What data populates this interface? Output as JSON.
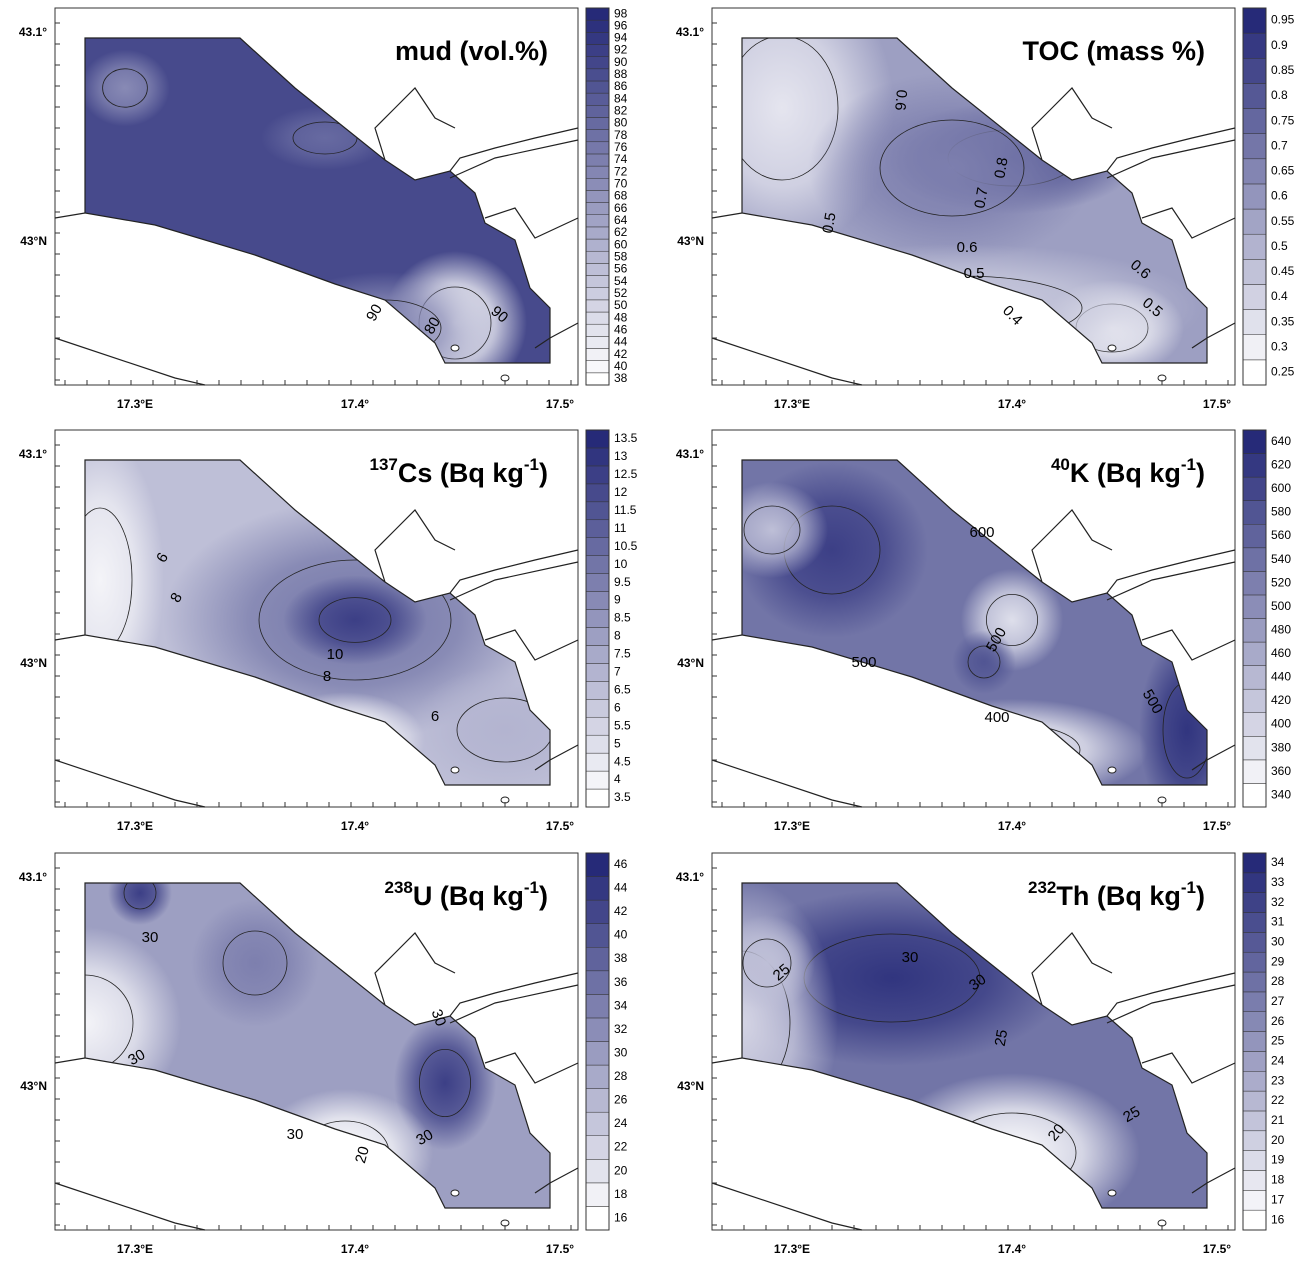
{
  "x_axis_labels": [
    "17.3°E",
    "17.4°",
    "17.5°"
  ],
  "y_axis_labels": [
    "43.1°",
    "43°N"
  ],
  "panels": [
    {
      "title": "mud (vol.%)",
      "colorbar_ticks": [
        38,
        40,
        42,
        44,
        46,
        48,
        50,
        52,
        54,
        56,
        58,
        60,
        62,
        64,
        66,
        68,
        70,
        72,
        74,
        76,
        78,
        80,
        82,
        84,
        86,
        88,
        90,
        92,
        94,
        96,
        98
      ],
      "contour_labels": [
        90,
        80,
        90
      ]
    },
    {
      "title": "TOC (mass %)",
      "colorbar_ticks": [
        0.25,
        0.3,
        0.35,
        0.4,
        0.45,
        0.5,
        0.55,
        0.6,
        0.65,
        0.7,
        0.75,
        0.8,
        0.85,
        0.9,
        0.95
      ],
      "contour_labels": [
        0.6,
        0.8,
        0.7,
        0.5,
        0.6,
        0.5,
        0.6,
        0.4,
        0.5
      ]
    },
    {
      "title": {
        "mass": "137",
        "element": "Cs (Bq kg",
        "exponent": "-1",
        "close": ")"
      },
      "colorbar_ticks": [
        3.5,
        4,
        4.5,
        5,
        5.5,
        6,
        6.5,
        7,
        7.5,
        8,
        8.5,
        9,
        9.5,
        10,
        10.5,
        11,
        11.5,
        12,
        12.5,
        13,
        13.5
      ],
      "contour_labels": [
        6,
        8,
        10,
        8,
        6
      ]
    },
    {
      "title": {
        "mass": "40",
        "element": "K (Bq kg",
        "exponent": "-1",
        "close": ")"
      },
      "colorbar_ticks": [
        340,
        360,
        380,
        400,
        420,
        440,
        460,
        480,
        500,
        520,
        540,
        560,
        580,
        600,
        620,
        640
      ],
      "contour_labels": [
        600,
        500,
        500,
        400,
        500
      ]
    },
    {
      "title": {
        "mass": "238",
        "element": "U (Bq kg",
        "exponent": "-1",
        "close": ")"
      },
      "colorbar_ticks": [
        16,
        18,
        20,
        22,
        24,
        26,
        28,
        30,
        32,
        34,
        36,
        38,
        40,
        42,
        44,
        46
      ],
      "contour_labels": [
        30,
        30,
        30,
        30,
        20,
        30
      ]
    },
    {
      "title": {
        "mass": "232",
        "element": "Th (Bq kg",
        "exponent": "-1",
        "close": ")"
      },
      "colorbar_ticks": [
        16,
        17,
        18,
        19,
        20,
        21,
        22,
        23,
        24,
        25,
        26,
        27,
        28,
        29,
        30,
        31,
        32,
        33,
        34
      ],
      "contour_labels": [
        30,
        25,
        30,
        25,
        20,
        25
      ]
    }
  ]
}
